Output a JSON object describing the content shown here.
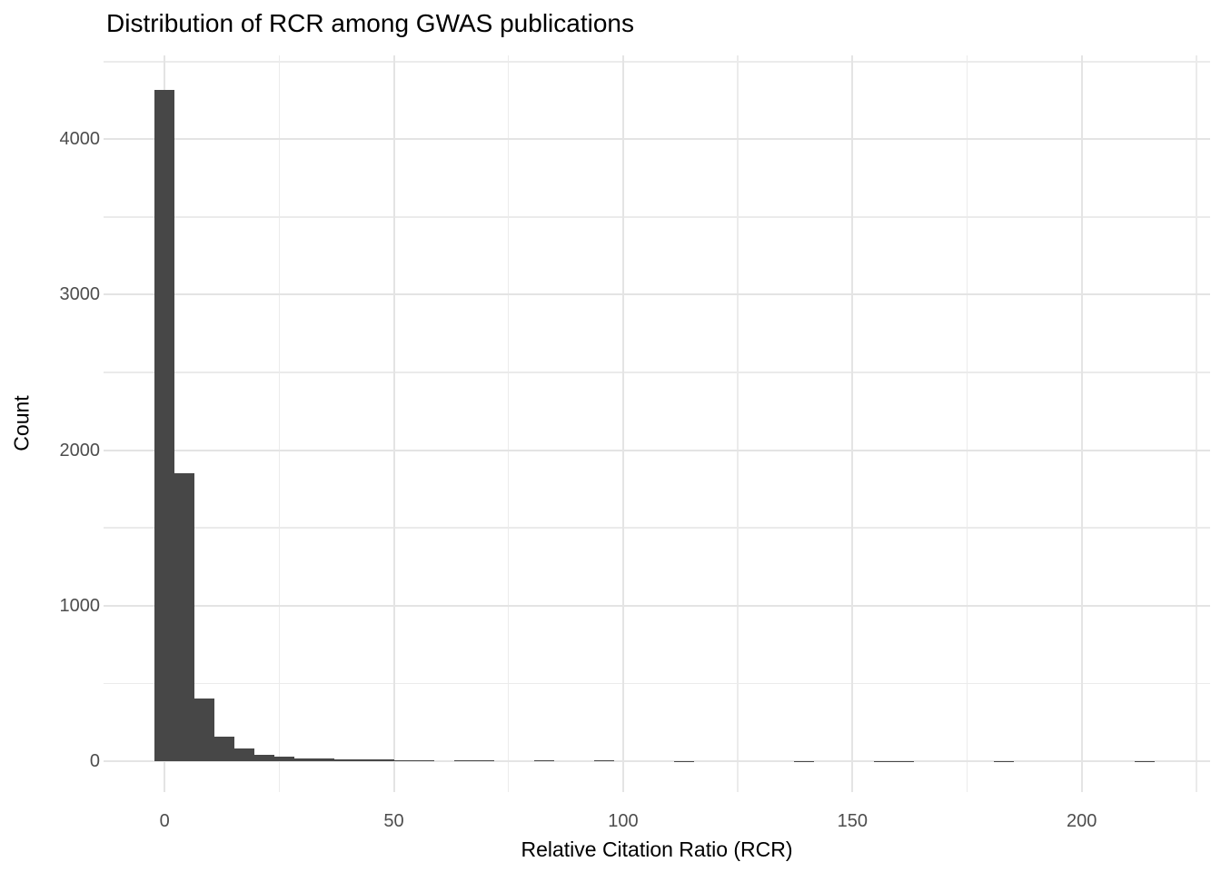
{
  "chart_data": {
    "type": "bar",
    "subtype": "histogram",
    "title": "Distribution of RCR among GWAS publications",
    "xlabel": "Relative Citation Ratio (RCR)",
    "ylabel": "Count",
    "bin_width": 4.36,
    "bin_centers": [
      0,
      4.36,
      8.72,
      13.08,
      17.44,
      21.8,
      26.16,
      30.52,
      34.88,
      39.24,
      43.6,
      47.96,
      52.32,
      56.68,
      61.04,
      65.4,
      69.76,
      74.12,
      78.48,
      82.84,
      87.2,
      91.56,
      95.92,
      100.28,
      104.64,
      109,
      113.36,
      117.72,
      122.08,
      126.44,
      130.8,
      135.16,
      139.52,
      143.88,
      148.24,
      152.6,
      156.96,
      161.32,
      165.68,
      170.04,
      174.4,
      178.76,
      183.12,
      187.48,
      191.84,
      196.2,
      200.56,
      204.92,
      209.28,
      213.64
    ],
    "counts": [
      4316,
      1851,
      403,
      158,
      82,
      41,
      26,
      17,
      14,
      12,
      10,
      8,
      6,
      5,
      0,
      4,
      3,
      0,
      0,
      2,
      0,
      0,
      2,
      0,
      0,
      0,
      1,
      0,
      0,
      0,
      0,
      0,
      1,
      0,
      0,
      0,
      1,
      1,
      0,
      0,
      0,
      0,
      1,
      0,
      0,
      0,
      0,
      0,
      0,
      1
    ],
    "x_ticks": [
      0,
      50,
      100,
      150,
      200
    ],
    "x_minor_ticks": [
      25,
      75,
      125,
      175,
      225
    ],
    "y_ticks": [
      0,
      1000,
      2000,
      3000,
      4000
    ],
    "y_minor_ticks": [
      500,
      1500,
      2500,
      3500,
      4500
    ],
    "xlim": [
      -13.3,
      228
    ],
    "ylim": [
      -200,
      4540
    ],
    "grid": true,
    "legend": false,
    "bar_color": "#474747",
    "grid_major_color": "#E4E4E4",
    "grid_minor_color": "#EBEBEB",
    "tick_label_color": "#4D4D4D",
    "title_color": "#000000",
    "background_color": "#FFFFFF"
  }
}
